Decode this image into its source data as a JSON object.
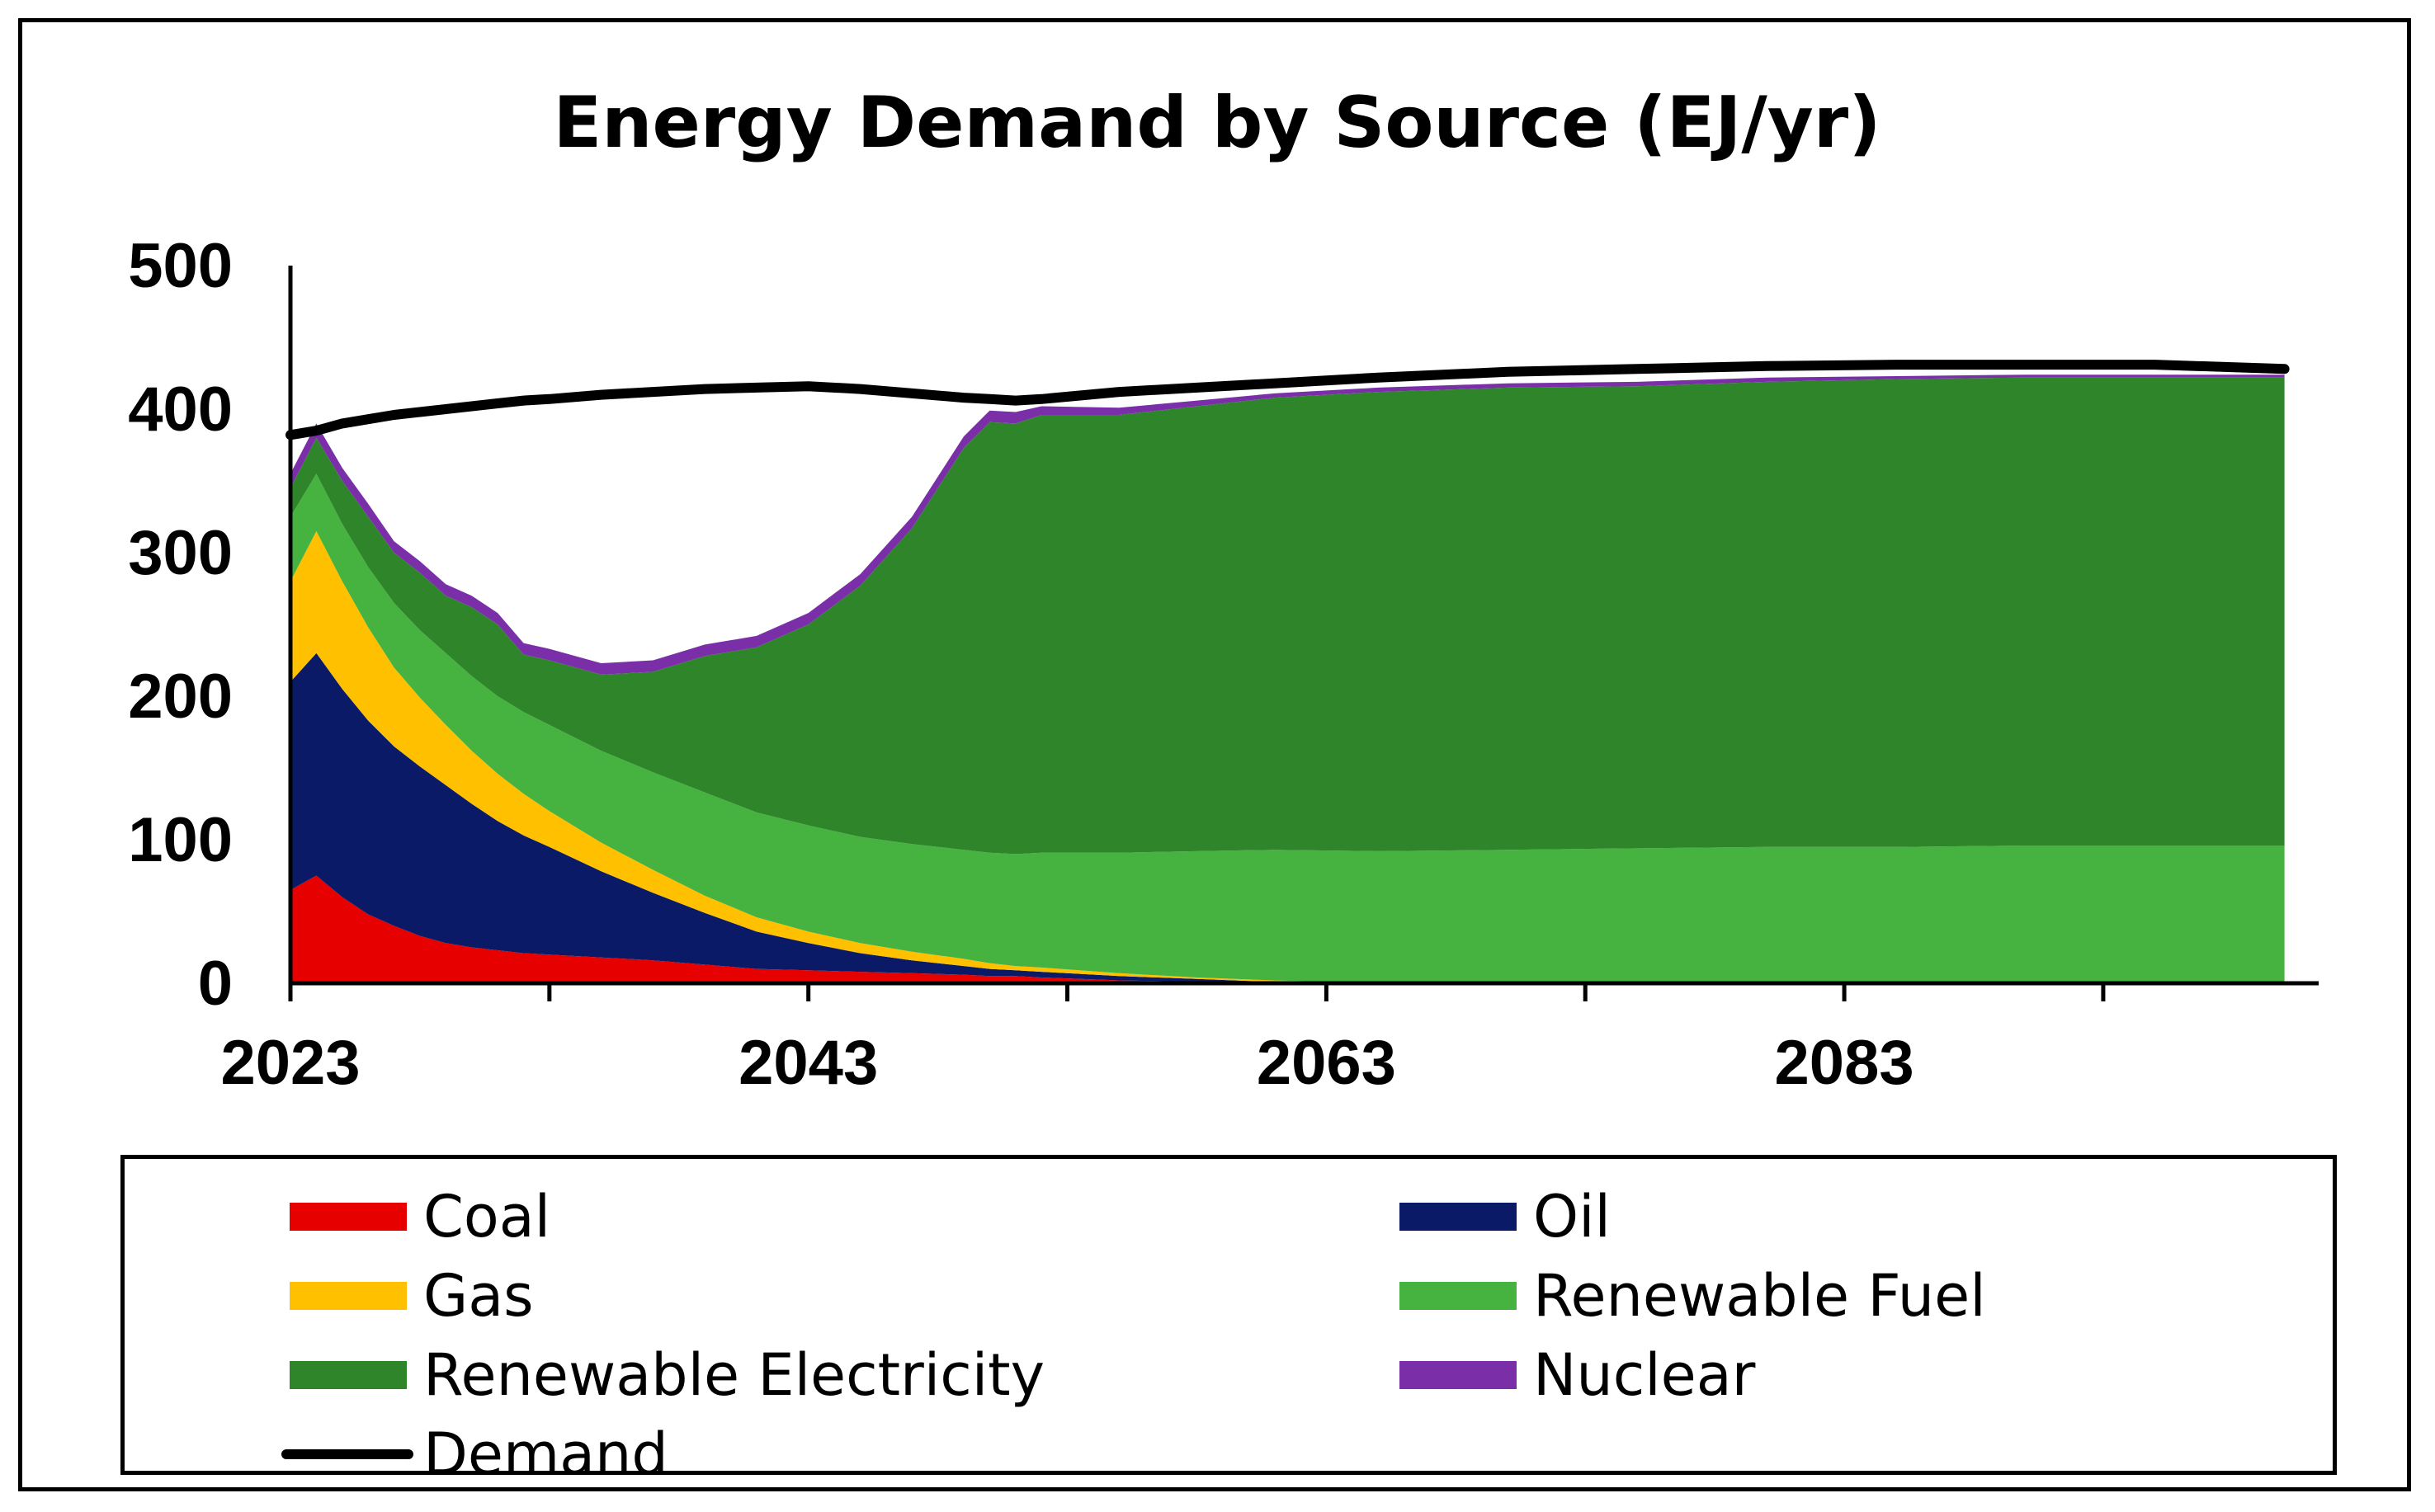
{
  "chart_data": {
    "type": "area",
    "title": "Energy Demand by Source (EJ/yr)",
    "xlabel": "",
    "ylabel": "",
    "xlim": [
      2023,
      2101
    ],
    "ylim": [
      0,
      500
    ],
    "x_tick_labels": [
      "2023",
      "2043",
      "2063",
      "2083"
    ],
    "y_tick_labels": [
      "0",
      "100",
      "200",
      "300",
      "400",
      "500"
    ],
    "x": [
      2023,
      2024,
      2025,
      2026,
      2027,
      2028,
      2029,
      2030,
      2031,
      2032,
      2033,
      2035,
      2037,
      2039,
      2041,
      2043,
      2045,
      2047,
      2049,
      2050,
      2051,
      2052,
      2055,
      2058,
      2061,
      2065,
      2070,
      2075,
      2080,
      2085,
      2090,
      2095,
      2100
    ],
    "series": [
      {
        "name": "Coal",
        "color": "#e60000",
        "values": [
          65,
          75,
          60,
          48,
          40,
          33,
          28,
          25,
          23,
          21,
          20,
          18,
          16,
          13,
          10,
          9,
          8,
          7,
          6,
          5,
          5,
          4,
          2,
          1,
          0,
          0,
          0,
          0,
          0,
          0,
          0,
          0,
          0
        ]
      },
      {
        "name": "Oil",
        "color": "#0a1a66",
        "values": [
          145,
          155,
          145,
          135,
          125,
          118,
          110,
          100,
          90,
          82,
          75,
          60,
          47,
          36,
          26,
          19,
          13,
          9,
          6,
          5,
          4,
          4,
          3,
          2,
          1,
          0,
          0,
          0,
          0,
          0,
          0,
          0,
          0
        ]
      },
      {
        "name": "Gas",
        "color": "#ffc000",
        "values": [
          70,
          85,
          75,
          65,
          55,
          48,
          42,
          37,
          33,
          29,
          25,
          20,
          16,
          12,
          10,
          8,
          7,
          6,
          5,
          4,
          3,
          3,
          2,
          1,
          1,
          0,
          0,
          0,
          0,
          0,
          0,
          0,
          0
        ]
      },
      {
        "name": "Renewable Fuel",
        "color": "#46b23f",
        "values": [
          45,
          40,
          40,
          42,
          45,
          47,
          50,
          52,
          54,
          57,
          60,
          64,
          68,
          72,
          73,
          74,
          74,
          75,
          76,
          77,
          78,
          80,
          84,
          88,
          91,
          92,
          93,
          94,
          95,
          95,
          96,
          96,
          96
        ]
      },
      {
        "name": "Renewable Electricity",
        "color": "#2e852a",
        "values": [
          20,
          25,
          30,
          35,
          35,
          40,
          40,
          48,
          50,
          40,
          45,
          53,
          70,
          95,
          115,
          140,
          175,
          220,
          280,
          300,
          300,
          305,
          305,
          310,
          315,
          320,
          322,
          322,
          324,
          326,
          326,
          326,
          326
        ]
      },
      {
        "name": "Nuclear",
        "color": "#7a2fa8",
        "values": [
          10,
          10,
          9,
          9,
          8,
          8,
          8,
          8,
          8,
          8,
          8,
          8,
          8,
          8,
          8,
          8,
          8,
          8,
          8,
          8,
          8,
          6,
          5,
          4,
          3,
          3,
          3,
          3,
          3,
          2,
          2,
          2,
          2
        ]
      }
    ],
    "demand": {
      "name": "Demand",
      "color": "#000000",
      "values": [
        382,
        385,
        390,
        393,
        396,
        398,
        400,
        402,
        404,
        406,
        407,
        410,
        412,
        414,
        415,
        416,
        414,
        411,
        408,
        407,
        406,
        407,
        412,
        415,
        418,
        422,
        426,
        428,
        430,
        431,
        431,
        431,
        428
      ]
    },
    "legend": {
      "position": "bottom",
      "items": [
        {
          "label": "Coal",
          "color": "#e60000",
          "kind": "area"
        },
        {
          "label": "Oil",
          "color": "#0a1a66",
          "kind": "area"
        },
        {
          "label": "Gas",
          "color": "#ffc000",
          "kind": "area"
        },
        {
          "label": "Renewable Fuel",
          "color": "#46b23f",
          "kind": "area"
        },
        {
          "label": "Renewable Electricity",
          "color": "#2e852a",
          "kind": "area"
        },
        {
          "label": "Nuclear",
          "color": "#7a2fa8",
          "kind": "area"
        },
        {
          "label": "Demand",
          "color": "#000000",
          "kind": "line"
        }
      ]
    }
  }
}
